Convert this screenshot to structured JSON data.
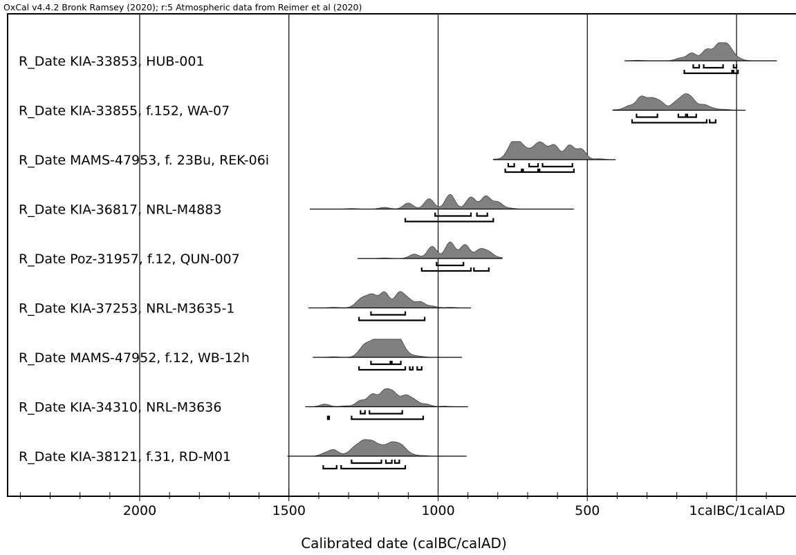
{
  "header": "OxCal v4.4.2 Bronk Ramsey (2020); r:5 Atmospheric data from Reimer et al (2020)",
  "chart_data": {
    "type": "density-ridge",
    "xlabel": "Calibrated date (calBC/calAD)",
    "x_axis": {
      "direction": "reversed",
      "range": [
        2440,
        -270
      ],
      "major_ticks": [
        2000,
        1500,
        1000,
        500,
        0
      ],
      "tick_labels": [
        "2000",
        "1500",
        "1000",
        "500",
        "1calBC/1calAD"
      ],
      "minor_tick_step": 100,
      "gridlines_at_major_ticks": true
    },
    "series": [
      {
        "name": "R_Date KIA-33853, HUB-001",
        "line_range": [
          375,
          -135
        ],
        "peaks": [
          [
            330,
            0.03
          ],
          [
            190,
            0.15
          ],
          [
            150,
            0.45
          ],
          [
            100,
            0.65
          ],
          [
            60,
            0.88
          ],
          [
            30,
            0.8
          ],
          [
            5,
            0.15
          ],
          [
            -15,
            0.05
          ]
        ],
        "ranges_68": [
          [
            145,
            125
          ],
          [
            110,
            45
          ],
          [
            10,
            0
          ]
        ],
        "ranges_95": [
          [
            175,
            15
          ],
          [
            10,
            -5
          ]
        ]
      },
      {
        "name": "R_Date KIA-33855, f.152, WA-07",
        "line_range": [
          415,
          -30
        ],
        "peaks": [
          [
            400,
            0.03
          ],
          [
            360,
            0.25
          ],
          [
            320,
            0.75
          ],
          [
            285,
            0.6
          ],
          [
            255,
            0.45
          ],
          [
            205,
            0.4
          ],
          [
            175,
            0.7
          ],
          [
            150,
            0.55
          ],
          [
            110,
            0.3
          ],
          [
            80,
            0.1
          ],
          [
            40,
            0.05
          ]
        ],
        "ranges_68": [
          [
            335,
            265
          ],
          [
            195,
            170
          ],
          [
            165,
            135
          ]
        ],
        "ranges_95": [
          [
            350,
            100
          ],
          [
            90,
            70
          ]
        ]
      },
      {
        "name": "R_Date MAMS-47953, f. 23Bu, REK-06i",
        "line_range": [
          815,
          405
        ],
        "peaks": [
          [
            805,
            0.03
          ],
          [
            760,
            0.45
          ],
          [
            740,
            0.85
          ],
          [
            715,
            0.55
          ],
          [
            685,
            0.4
          ],
          [
            660,
            0.75
          ],
          [
            640,
            0.35
          ],
          [
            610,
            0.8
          ],
          [
            560,
            0.82
          ],
          [
            520,
            0.6
          ],
          [
            460,
            0.05
          ]
        ],
        "ranges_68": [
          [
            765,
            745
          ],
          [
            695,
            665
          ],
          [
            650,
            550
          ]
        ],
        "ranges_95": [
          [
            775,
            720
          ],
          [
            715,
            665
          ],
          [
            660,
            545
          ]
        ]
      },
      {
        "name": "R_Date KIA-36817, NRL-M4883",
        "line_range": [
          1430,
          545
        ],
        "peaks": [
          [
            1290,
            0.03
          ],
          [
            1180,
            0.1
          ],
          [
            1100,
            0.35
          ],
          [
            1030,
            0.6
          ],
          [
            960,
            0.85
          ],
          [
            890,
            0.7
          ],
          [
            840,
            0.75
          ],
          [
            800,
            0.4
          ],
          [
            760,
            0.05
          ]
        ],
        "ranges_68": [
          [
            1010,
            890
          ],
          [
            870,
            835
          ]
        ],
        "ranges_95": [
          [
            1110,
            815
          ]
        ]
      },
      {
        "name": "R_Date Poz-31957, f.12, QUN-007",
        "line_range": [
          1270,
          785
        ],
        "peaks": [
          [
            1180,
            0.03
          ],
          [
            1080,
            0.25
          ],
          [
            1020,
            0.7
          ],
          [
            960,
            0.95
          ],
          [
            910,
            0.8
          ],
          [
            860,
            0.5
          ],
          [
            830,
            0.35
          ],
          [
            790,
            0.05
          ]
        ],
        "ranges_68": [
          [
            1005,
            915
          ]
        ],
        "ranges_95": [
          [
            1055,
            890
          ],
          [
            880,
            830
          ]
        ]
      },
      {
        "name": "R_Date KIA-37253, NRL-M3635-1",
        "line_range": [
          1435,
          890
        ],
        "peaks": [
          [
            1350,
            0.03
          ],
          [
            1270,
            0.2
          ],
          [
            1250,
            0.45
          ],
          [
            1220,
            0.7
          ],
          [
            1180,
            0.9
          ],
          [
            1130,
            0.85
          ],
          [
            1100,
            0.45
          ],
          [
            1060,
            0.35
          ],
          [
            1020,
            0.1
          ],
          [
            960,
            0.03
          ]
        ],
        "ranges_68": [
          [
            1225,
            1110
          ]
        ],
        "ranges_95": [
          [
            1265,
            1045
          ]
        ]
      },
      {
        "name": "R_Date MAMS-47952, f.12, WB-12h",
        "line_range": [
          1420,
          920
        ],
        "peaks": [
          [
            1350,
            0.03
          ],
          [
            1260,
            0.25
          ],
          [
            1240,
            0.6
          ],
          [
            1210,
            0.85
          ],
          [
            1180,
            0.8
          ],
          [
            1160,
            0.65
          ],
          [
            1140,
            0.9
          ],
          [
            1120,
            0.45
          ],
          [
            1090,
            0.1
          ],
          [
            1060,
            0.05
          ]
        ],
        "ranges_68": [
          [
            1225,
            1160
          ],
          [
            1155,
            1125
          ]
        ],
        "ranges_95": [
          [
            1265,
            1110
          ],
          [
            1095,
            1085
          ],
          [
            1070,
            1055
          ]
        ]
      },
      {
        "name": "R_Date KIA-34310, NRL-M3636",
        "line_range": [
          1445,
          900
        ],
        "peaks": [
          [
            1380,
            0.15
          ],
          [
            1310,
            0.05
          ],
          [
            1260,
            0.35
          ],
          [
            1220,
            0.7
          ],
          [
            1180,
            0.85
          ],
          [
            1150,
            0.75
          ],
          [
            1110,
            0.6
          ],
          [
            1080,
            0.35
          ],
          [
            1040,
            0.15
          ],
          [
            980,
            0.03
          ]
        ],
        "ranges_68": [
          [
            1260,
            1245
          ],
          [
            1230,
            1120
          ]
        ],
        "ranges_95": [
          [
            1370,
            1365
          ],
          [
            1290,
            1050
          ]
        ]
      },
      {
        "name": "R_Date KIA-38121, f.31, RD-M01",
        "line_range": [
          1505,
          905
        ],
        "peaks": [
          [
            1380,
            0.15
          ],
          [
            1350,
            0.35
          ],
          [
            1310,
            0.08
          ],
          [
            1280,
            0.45
          ],
          [
            1250,
            0.75
          ],
          [
            1220,
            0.7
          ],
          [
            1190,
            0.45
          ],
          [
            1160,
            0.55
          ],
          [
            1140,
            0.35
          ],
          [
            1120,
            0.45
          ],
          [
            1090,
            0.1
          ],
          [
            1050,
            0.03
          ]
        ],
        "ranges_68": [
          [
            1290,
            1190
          ],
          [
            1175,
            1155
          ],
          [
            1145,
            1130
          ]
        ],
        "ranges_95": [
          [
            1385,
            1340
          ],
          [
            1325,
            1110
          ]
        ]
      }
    ]
  }
}
